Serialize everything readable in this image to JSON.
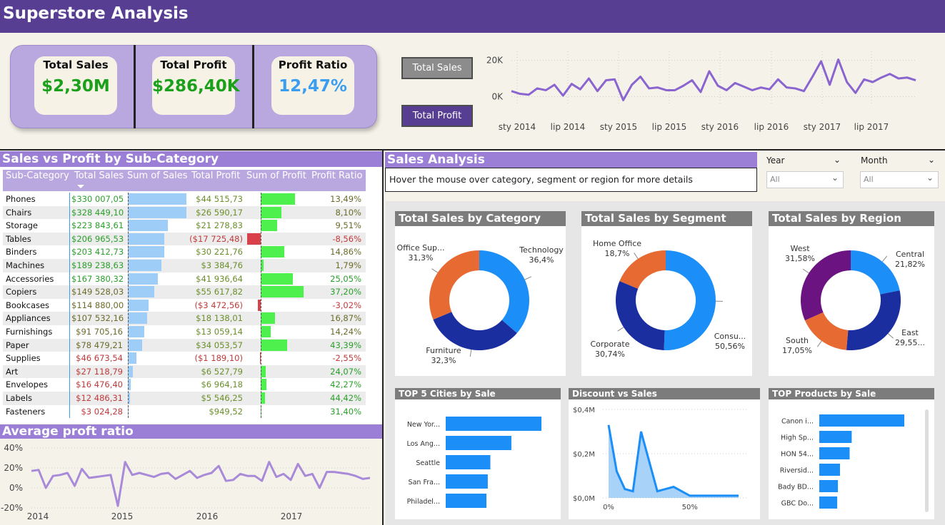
{
  "header": {
    "title": "Superstore Analysis"
  },
  "kpis": [
    {
      "label": "Total Sales",
      "value": "$2,30M",
      "color": "#1aa01a"
    },
    {
      "label": "Total Profit",
      "value": "$286,40K",
      "color": "#1aa01a"
    },
    {
      "label": "Profit Ratio",
      "value": "12,47%",
      "color": "#3a9df0"
    }
  ],
  "buttons": {
    "total_sales": "Total Sales",
    "total_profit": "Total Profit"
  },
  "sections": {
    "subcat": "Sales vs Profit by Sub-Category",
    "avg_ratio": "Average proft ratio",
    "sales_analysis": "Sales Analysis",
    "hover_hint": "Hover the mouse over category, segment or region for more details"
  },
  "slicers": {
    "year": {
      "label": "Year",
      "value": "All"
    },
    "month": {
      "label": "Month",
      "value": "All"
    }
  },
  "table": {
    "columns": [
      "Sub-Category",
      "Total Sales",
      "Sum of Sales",
      "Total Profit",
      "Sum of Profit",
      "Profit Ratio"
    ],
    "rows": [
      {
        "name": "Phones",
        "sales": "$330 007,05",
        "sales_v": 330007,
        "profit": "$44 515,73",
        "profit_v": 44516,
        "ratio": "13,49%"
      },
      {
        "name": "Chairs",
        "sales": "$328 449,10",
        "sales_v": 328449,
        "profit": "$26 590,17",
        "profit_v": 26590,
        "ratio": "8,10%"
      },
      {
        "name": "Storage",
        "sales": "$223 843,61",
        "sales_v": 223844,
        "profit": "$21 278,83",
        "profit_v": 21279,
        "ratio": "9,51%"
      },
      {
        "name": "Tables",
        "sales": "$206 965,53",
        "sales_v": 206966,
        "profit": "($17 725,48)",
        "profit_v": -17725,
        "ratio": "-8,56%"
      },
      {
        "name": "Binders",
        "sales": "$203 412,73",
        "sales_v": 203413,
        "profit": "$30 221,76",
        "profit_v": 30222,
        "ratio": "14,86%"
      },
      {
        "name": "Machines",
        "sales": "$189 238,63",
        "sales_v": 189239,
        "profit": "$3 384,76",
        "profit_v": 3385,
        "ratio": "1,79%"
      },
      {
        "name": "Accessories",
        "sales": "$167 380,32",
        "sales_v": 167380,
        "profit": "$41 936,64",
        "profit_v": 41937,
        "ratio": "25,05%"
      },
      {
        "name": "Copiers",
        "sales": "$149 528,03",
        "sales_v": 149528,
        "profit": "$55 617,82",
        "profit_v": 55618,
        "ratio": "37,20%"
      },
      {
        "name": "Bookcases",
        "sales": "$114 880,00",
        "sales_v": 114880,
        "profit": "($3 472,56)",
        "profit_v": -3473,
        "ratio": "-3,02%"
      },
      {
        "name": "Appliances",
        "sales": "$107 532,16",
        "sales_v": 107532,
        "profit": "$18 138,01",
        "profit_v": 18138,
        "ratio": "16,87%"
      },
      {
        "name": "Furnishings",
        "sales": "$91 705,16",
        "sales_v": 91705,
        "profit": "$13 059,14",
        "profit_v": 13059,
        "ratio": "14,24%"
      },
      {
        "name": "Paper",
        "sales": "$78 479,21",
        "sales_v": 78479,
        "profit": "$34 053,57",
        "profit_v": 34054,
        "ratio": "43,39%"
      },
      {
        "name": "Supplies",
        "sales": "$46 673,54",
        "sales_v": 46674,
        "profit": "($1 189,10)",
        "profit_v": -1189,
        "ratio": "-2,55%"
      },
      {
        "name": "Art",
        "sales": "$27 118,79",
        "sales_v": 27119,
        "profit": "$6 527,79",
        "profit_v": 6528,
        "ratio": "24,07%"
      },
      {
        "name": "Envelopes",
        "sales": "$16 476,40",
        "sales_v": 16476,
        "profit": "$6 964,18",
        "profit_v": 6964,
        "ratio": "42,27%"
      },
      {
        "name": "Labels",
        "sales": "$12 486,31",
        "sales_v": 12486,
        "profit": "$5 546,25",
        "profit_v": 5546,
        "ratio": "44,42%"
      },
      {
        "name": "Fasteners",
        "sales": "$3 024,28",
        "sales_v": 3024,
        "profit": "$949,52",
        "profit_v": 950,
        "ratio": "31,40%"
      }
    ]
  },
  "chart_data": [
    {
      "id": "sales_trend",
      "type": "line",
      "color": "#8a65d0",
      "yticks": [
        "20K",
        "0K"
      ],
      "ylim": [
        -5000,
        25000
      ],
      "xticks": [
        "sty 2014",
        "lip 2014",
        "sty 2015",
        "lip 2015",
        "sty 2016",
        "lip 2016",
        "sty 2017",
        "lip 2017"
      ],
      "values": [
        3000,
        1500,
        1000,
        4500,
        3500,
        6500,
        500,
        7000,
        4000,
        10000,
        3000,
        9000,
        9500,
        -2000,
        6500,
        11000,
        4500,
        5000,
        3500,
        3500,
        6000,
        9000,
        2500,
        14000,
        6000,
        3500,
        7500,
        5500,
        3500,
        5000,
        4000,
        9500,
        5000,
        4500,
        3000,
        11000,
        19500,
        6500,
        20500,
        8000,
        2000,
        9500,
        8000,
        10500,
        12500,
        10000,
        10500,
        9000
      ]
    },
    {
      "id": "avg_profit_ratio",
      "type": "line",
      "color": "#a98ad8",
      "yticks": [
        "40%",
        "20%",
        "0%",
        "-20%"
      ],
      "ylim": [
        -20,
        40
      ],
      "xticks": [
        "2014",
        "2015",
        "2016",
        "2017"
      ],
      "values": [
        17,
        18,
        0,
        12,
        13,
        15,
        2,
        19,
        10,
        11,
        12,
        13,
        -18,
        26,
        13,
        15,
        13,
        11,
        14,
        15,
        9,
        13,
        17,
        10,
        13,
        15,
        22,
        7,
        8,
        14,
        12,
        12,
        7,
        26,
        11,
        14,
        8,
        24,
        12,
        14,
        0,
        16,
        16,
        15,
        14,
        12,
        9,
        10
      ]
    },
    {
      "id": "sales_by_category",
      "type": "pie",
      "title": "Total Sales by Category",
      "slices": [
        {
          "label": "Technology",
          "pct": "36,4%",
          "value": 36.4,
          "color": "#1b8ef8"
        },
        {
          "label": "Furniture",
          "pct": "32,3%",
          "value": 32.3,
          "color": "#1a2ea0"
        },
        {
          "label": "Office Sup...",
          "pct": "31,3%",
          "value": 31.3,
          "color": "#e86a33"
        }
      ]
    },
    {
      "id": "sales_by_segment",
      "type": "pie",
      "title": "Total Sales by Segment",
      "slices": [
        {
          "label": "Consu...",
          "pct": "50,56%",
          "value": 50.56,
          "color": "#1b8ef8"
        },
        {
          "label": "Corporate",
          "pct": "30,74%",
          "value": 30.74,
          "color": "#1a2ea0"
        },
        {
          "label": "Home Office",
          "pct": "18,7%",
          "value": 18.7,
          "color": "#e86a33"
        }
      ]
    },
    {
      "id": "sales_by_region",
      "type": "pie",
      "title": "Total Sales by Region",
      "slices": [
        {
          "label": "Central",
          "pct": "21,82%",
          "value": 21.82,
          "color": "#1b8ef8"
        },
        {
          "label": "East",
          "pct": "29,55...",
          "value": 29.55,
          "color": "#1a2ea0"
        },
        {
          "label": "South",
          "pct": "17,05%",
          "value": 17.05,
          "color": "#e86a33"
        },
        {
          "label": "West",
          "pct": "31,58%",
          "value": 31.58,
          "color": "#6b1380"
        }
      ]
    },
    {
      "id": "top_cities",
      "type": "bar",
      "title": "TOP 5 Cities by Sale",
      "color": "#1b8ef8",
      "categories": [
        "New Yor...",
        "Los Ang...",
        "Seattle",
        "San Fra...",
        "Philadel..."
      ],
      "values": [
        256368,
        175851,
        119541,
        112669,
        109077
      ]
    },
    {
      "id": "discount_vs_sales",
      "type": "area",
      "title": "Discount vs Sales",
      "color": "#1b8ef8",
      "yticks": [
        "$0,4M",
        "$0,2M",
        "$0,0M"
      ],
      "ylim": [
        0,
        0.4
      ],
      "xticks": [
        "0%",
        "50%"
      ],
      "x": [
        0,
        5,
        10,
        15,
        20,
        30,
        40,
        45,
        50,
        60,
        70,
        80
      ],
      "values": [
        0.33,
        0.12,
        0.04,
        0.03,
        0.3,
        0.03,
        0.05,
        0.03,
        0.01,
        0.01,
        0.01,
        0.01
      ]
    },
    {
      "id": "top_products",
      "type": "bar",
      "title": "TOP Products by Sale",
      "color": "#1b8ef8",
      "categories": [
        "Canon i...",
        "High Sp...",
        "HON 54...",
        "Riversid...",
        "Bady BD...",
        "GBC Do..."
      ],
      "values": [
        61600,
        23500,
        22000,
        15000,
        13500,
        13000
      ]
    }
  ]
}
